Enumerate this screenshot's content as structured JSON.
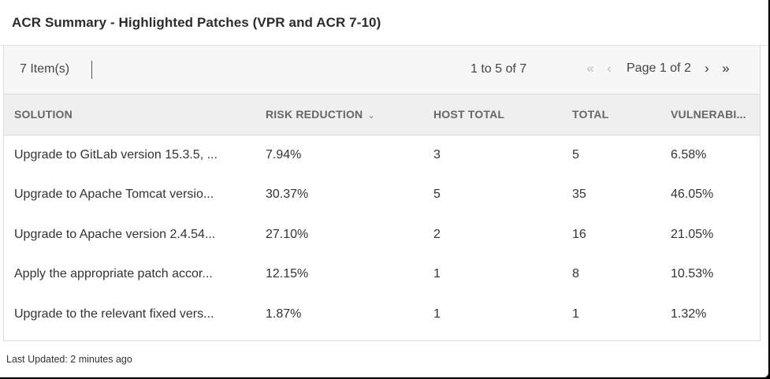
{
  "widget": {
    "title": "ACR Summary - Highlighted Patches (VPR and ACR 7-10)"
  },
  "toolbar": {
    "item_count": "7 Item(s)",
    "range": "1 to 5 of 7",
    "page_label": "Page 1 of 2",
    "first_icon": "«",
    "prev_icon": "‹",
    "next_icon": "›",
    "last_icon": "»"
  },
  "table": {
    "columns": [
      {
        "label": "SOLUTION"
      },
      {
        "label": "RISK REDUCTION",
        "sort_icon": "⌄"
      },
      {
        "label": "HOST TOTAL"
      },
      {
        "label": "TOTAL"
      },
      {
        "label": "VULNERABI..."
      }
    ],
    "rows": [
      [
        "Upgrade to GitLab version 15.3.5, ...",
        "7.94%",
        "3",
        "5",
        "6.58%"
      ],
      [
        "Upgrade to Apache Tomcat versio...",
        "30.37%",
        "5",
        "35",
        "46.05%"
      ],
      [
        "Upgrade to Apache version 2.4.54...",
        "27.10%",
        "2",
        "16",
        "21.05%"
      ],
      [
        "Apply the appropriate patch accor...",
        "12.15%",
        "1",
        "8",
        "10.53%"
      ],
      [
        "Upgrade to the relevant fixed vers...",
        "1.87%",
        "1",
        "1",
        "1.32%"
      ]
    ]
  },
  "footer": {
    "last_updated": "Last Updated: 2 minutes ago"
  }
}
